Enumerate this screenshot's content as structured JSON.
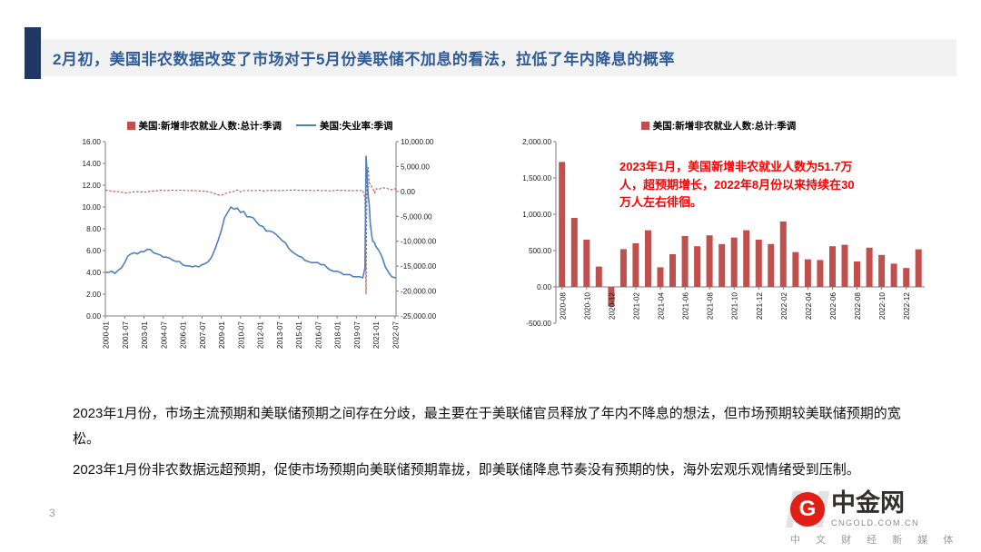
{
  "slide": {
    "title": "2月初，美国非农数据改变了市场对于5月份美联储不加息的看法，拉低了年内降息的概率",
    "page_number": "3",
    "body_paragraphs": [
      "2023年1月份，市场主流预期和美联储预期之间存在分歧，最主要在于美联储官员释放了年内不降息的想法，但市场预期较美联储预期的宽松。",
      "2023年1月份非农数据远超预期，促使市场预期向美联储预期靠拢，即美联储降息节奏没有预期的快，海外宏观乐观情绪受到压制。"
    ]
  },
  "theme": {
    "accent_color": "#1F3864",
    "band_color": "#F2F2F2",
    "title_color": "#2E5B97"
  },
  "logo": {
    "watermark": "M",
    "icon_letter": "G",
    "name": "中金网",
    "domain": "CNGOLD.COM.CN",
    "tagline": "中 文 财 经 新 媒 体",
    "brand_color": "#E02016"
  },
  "chart_data": [
    {
      "type": "line",
      "x_range": [
        2000.0,
        2022.58
      ],
      "x_ticks": [
        2000.0,
        2001.5,
        2003.0,
        2004.5,
        2006.0,
        2007.5,
        2009.0,
        2010.5,
        2012.0,
        2013.5,
        2015.0,
        2016.5,
        2018.0,
        2019.5,
        2021.0,
        2022.5
      ],
      "x_tick_labels": [
        "2000-01",
        "2001-07",
        "2003-01",
        "2004-07",
        "2006-01",
        "2007-07",
        "2009-01",
        "2010-07",
        "2012-01",
        "2013-07",
        "2015-01",
        "2016-07",
        "2018-01",
        "2019-07",
        "2021-01",
        "2022-07"
      ],
      "left_axis": {
        "min": 0,
        "max": 16,
        "step": 2
      },
      "right_axis": {
        "min": -25000,
        "max": 10000,
        "step": 5000
      },
      "x": [
        2000.0,
        2000.25,
        2000.5,
        2000.75,
        2001.0,
        2001.25,
        2001.5,
        2001.75,
        2002.0,
        2002.25,
        2002.5,
        2002.75,
        2003.0,
        2003.25,
        2003.5,
        2003.75,
        2004.0,
        2004.25,
        2004.5,
        2004.75,
        2005.0,
        2005.25,
        2005.5,
        2005.75,
        2006.0,
        2006.25,
        2006.5,
        2006.75,
        2007.0,
        2007.25,
        2007.5,
        2007.75,
        2008.0,
        2008.25,
        2008.5,
        2008.75,
        2009.0,
        2009.25,
        2009.5,
        2009.75,
        2010.0,
        2010.25,
        2010.5,
        2010.75,
        2011.0,
        2011.25,
        2011.5,
        2011.75,
        2012.0,
        2012.25,
        2012.5,
        2012.75,
        2013.0,
        2013.25,
        2013.5,
        2013.75,
        2014.0,
        2014.25,
        2014.5,
        2014.75,
        2015.0,
        2015.25,
        2015.5,
        2015.75,
        2016.0,
        2016.25,
        2016.5,
        2016.75,
        2017.0,
        2017.25,
        2017.5,
        2017.75,
        2018.0,
        2018.25,
        2018.5,
        2018.75,
        2019.0,
        2019.25,
        2019.5,
        2019.75,
        2020.0,
        2020.17,
        2020.25,
        2020.33,
        2020.42,
        2020.5,
        2020.58,
        2020.75,
        2020.92,
        2021.0,
        2021.25,
        2021.5,
        2021.75,
        2022.0,
        2022.25,
        2022.5,
        2022.58
      ],
      "series": [
        {
          "name": "美国:新增非农就业人数:总计:季调",
          "axis": "right",
          "color": "#C0504D",
          "style": "dashed",
          "values": [
            250,
            150,
            100,
            0,
            -50,
            -150,
            -250,
            -300,
            -150,
            -80,
            -50,
            -100,
            -120,
            -60,
            50,
            100,
            160,
            250,
            160,
            200,
            200,
            250,
            200,
            250,
            260,
            150,
            160,
            200,
            160,
            100,
            50,
            100,
            -100,
            -200,
            -450,
            -700,
            -780,
            -500,
            -250,
            -150,
            50,
            300,
            -100,
            150,
            150,
            200,
            150,
            200,
            250,
            100,
            150,
            200,
            200,
            200,
            150,
            200,
            180,
            300,
            250,
            300,
            220,
            250,
            150,
            250,
            200,
            150,
            250,
            150,
            200,
            150,
            100,
            200,
            250,
            200,
            250,
            150,
            200,
            150,
            200,
            150,
            250,
            -1400,
            -20679,
            2833,
            4846,
            1726,
            1489,
            680,
            -268,
            520,
            447,
            689,
            677,
            504,
            368,
            537,
            292
          ]
        },
        {
          "name": "美国:失业率:季调",
          "axis": "left",
          "color": "#4F81BD",
          "style": "solid",
          "values": [
            4.0,
            4.0,
            4.1,
            3.9,
            4.2,
            4.4,
            4.9,
            5.5,
            5.7,
            5.8,
            5.7,
            5.9,
            5.9,
            6.1,
            6.1,
            5.8,
            5.7,
            5.6,
            5.4,
            5.4,
            5.3,
            5.1,
            5.0,
            5.0,
            4.7,
            4.6,
            4.6,
            4.5,
            4.6,
            4.5,
            4.7,
            4.8,
            5.0,
            5.4,
            6.1,
            6.9,
            7.8,
            9.0,
            9.5,
            10.0,
            9.8,
            9.9,
            9.5,
            9.6,
            9.1,
            9.1,
            9.0,
            8.6,
            8.3,
            8.2,
            7.8,
            7.8,
            7.7,
            7.5,
            7.2,
            6.9,
            6.7,
            6.2,
            5.9,
            5.7,
            5.5,
            5.4,
            5.1,
            5.0,
            4.9,
            4.9,
            4.9,
            4.7,
            4.7,
            4.4,
            4.2,
            4.1,
            4.1,
            4.0,
            3.8,
            3.8,
            3.8,
            3.6,
            3.6,
            3.6,
            3.5,
            4.4,
            14.7,
            13.2,
            11.0,
            10.2,
            8.4,
            6.9,
            6.7,
            6.4,
            6.0,
            5.4,
            4.5,
            4.0,
            3.6,
            3.5,
            3.5
          ]
        }
      ]
    },
    {
      "type": "bar",
      "legend": "美国:新增非农就业人数:总计:季调",
      "color": "#C0504D",
      "y_axis": {
        "min": -500,
        "max": 2000,
        "step": 500
      },
      "x_tick_every": 2,
      "categories": [
        "2020-08",
        "2020-09",
        "2020-10",
        "2020-11",
        "2020-12",
        "2021-01",
        "2021-02",
        "2021-03",
        "2021-04",
        "2021-05",
        "2021-06",
        "2021-07",
        "2021-08",
        "2021-09",
        "2021-10",
        "2021-11",
        "2021-12",
        "2022-01",
        "2022-02",
        "2022-03",
        "2022-04",
        "2022-05",
        "2022-06",
        "2022-07",
        "2022-08",
        "2022-09",
        "2022-10",
        "2022-11",
        "2022-12",
        "2023-01"
      ],
      "values": [
        1720,
        950,
        650,
        280,
        -270,
        520,
        600,
        780,
        270,
        450,
        700,
        560,
        710,
        590,
        680,
        780,
        650,
        590,
        900,
        480,
        380,
        370,
        560,
        580,
        350,
        540,
        440,
        320,
        260,
        517
      ],
      "annotation": {
        "text": "2023年1月，美国新增非农就业人数为51.7万人，超预期增长，2022年8月份以来持续在30万人左右徘徊。",
        "color": "#FF0000"
      }
    }
  ]
}
